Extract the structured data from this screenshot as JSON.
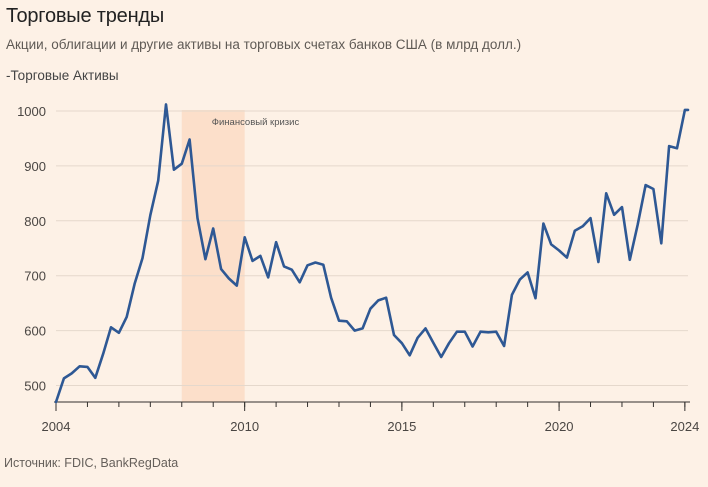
{
  "chart_data": {
    "type": "line",
    "title": "Торговые тренды",
    "subtitle": "Акции, облигации и другие активы на торговых счетах банков США (в млрд долл.)",
    "legend": "-Торговые Активы",
    "source": "Источник: FDIC, BankRegData",
    "annotation": {
      "label": "Финансовый кризис",
      "x_start": 2008.0,
      "x_end": 2010.0
    },
    "xlim": [
      2004.0,
      2024.1
    ],
    "ylim": [
      470,
      1020
    ],
    "x_ticks": [
      2004,
      2010,
      2015,
      2020,
      2024
    ],
    "y_ticks": [
      500,
      600,
      700,
      800,
      900,
      1000
    ],
    "series": [
      {
        "name": "Торговые Активы",
        "color": "#2e5894",
        "x": [
          2004.0,
          2004.25,
          2004.5,
          2004.75,
          2005.0,
          2005.25,
          2005.5,
          2005.75,
          2006.0,
          2006.25,
          2006.5,
          2006.75,
          2007.0,
          2007.25,
          2007.5,
          2007.75,
          2008.0,
          2008.25,
          2008.5,
          2008.75,
          2009.0,
          2009.25,
          2009.5,
          2009.75,
          2010.0,
          2010.25,
          2010.5,
          2010.75,
          2011.0,
          2011.25,
          2011.5,
          2011.75,
          2012.0,
          2012.25,
          2012.5,
          2012.75,
          2013.0,
          2013.25,
          2013.5,
          2013.75,
          2014.0,
          2014.25,
          2014.5,
          2014.75,
          2015.0,
          2015.25,
          2015.5,
          2015.75,
          2016.0,
          2016.25,
          2016.5,
          2016.75,
          2017.0,
          2017.25,
          2017.5,
          2017.75,
          2018.0,
          2018.25,
          2018.5,
          2018.75,
          2019.0,
          2019.25,
          2019.5,
          2019.75,
          2020.0,
          2020.25,
          2020.5,
          2020.75,
          2021.0,
          2021.25,
          2021.5,
          2021.75,
          2022.0,
          2022.25,
          2022.5,
          2022.75,
          2023.0,
          2023.25,
          2023.5,
          2023.75,
          2024.0,
          2024.1
        ],
        "values": [
          470,
          513,
          522,
          535,
          534,
          514,
          558,
          606,
          596,
          625,
          685,
          732,
          810,
          873,
          1012,
          893,
          904,
          948,
          805,
          730,
          786,
          712,
          695,
          682,
          770,
          727,
          736,
          697,
          761,
          717,
          711,
          688,
          719,
          724,
          720,
          660,
          618,
          617,
          600,
          604,
          640,
          655,
          660,
          592,
          577,
          555,
          587,
          604,
          578,
          552,
          577,
          598,
          598,
          571,
          598,
          597,
          598,
          572,
          665,
          693,
          706,
          659,
          795,
          757,
          746,
          733,
          782,
          790,
          805,
          725,
          850,
          811,
          825,
          729,
          793,
          865,
          858,
          759,
          936,
          932,
          1002,
          1002
        ]
      }
    ]
  }
}
